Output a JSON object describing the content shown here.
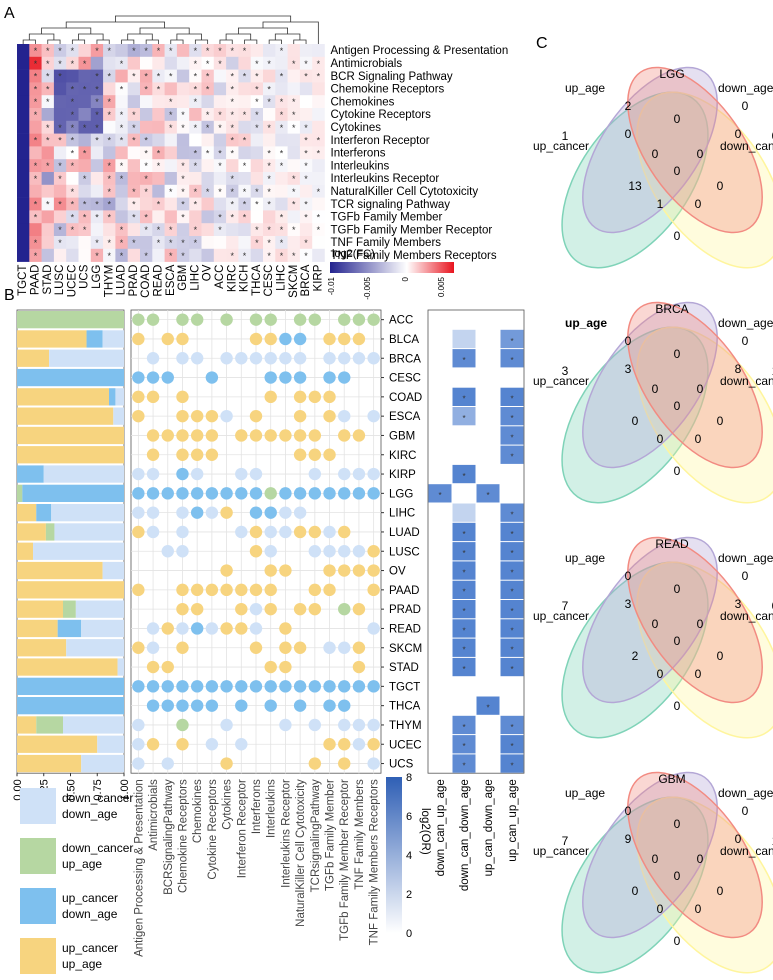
{
  "panel_labels": {
    "a": "A",
    "b": "B",
    "c": "C"
  },
  "heatmap": {
    "rows": [
      "Antigen Processing & Presentation",
      "Antimicrobials",
      "BCR Signaling Pathway",
      "Chemokine Receptors",
      "Chemokines",
      "Cytokine Receptors",
      "Cytokines",
      "Interferon Receptor",
      "Interferons",
      "Interleukins",
      "Interleukins Receptor",
      "NaturalKiller Cell Cytotoxicity",
      "TCR signaling Pathway",
      "TGFb Family Member",
      "TGFb Family Member Receptor",
      "TNF Family Members",
      "TNF Family Members Receptors"
    ],
    "cols": [
      "TGCT",
      "PAAD",
      "STAD",
      "LUSC",
      "UCEC",
      "UCS",
      "LGG",
      "THYM",
      "LUAD",
      "PRAD",
      "COAD",
      "READ",
      "ESCA",
      "GBM",
      "LIHC",
      "OV",
      "ACC",
      "KIRC",
      "KICH",
      "THCA",
      "CESC",
      "LIHC",
      "SKCM",
      "BRCA",
      "KIRP"
    ],
    "colorbar_title": "log2(FC)",
    "colorbar_ticks": [
      "-0.01",
      "-0.005",
      "0",
      "0.005"
    ],
    "colors": {
      "low": "#23238f",
      "mid": "#ffffff",
      "high": "#e8141e"
    }
  },
  "panelB": {
    "cancers": [
      "ACC",
      "BLCA",
      "BRCA",
      "CESC",
      "COAD",
      "ESCA",
      "GBM",
      "KIRC",
      "KIRP",
      "LGG",
      "LIHC",
      "LUAD",
      "LUSC",
      "OV",
      "PAAD",
      "PRAD",
      "READ",
      "SKCM",
      "STAD",
      "TGCT",
      "THCA",
      "THYM",
      "UCEC",
      "UCS"
    ],
    "pathways": [
      "Antigen Processing & Presentation",
      "Antimicrobials",
      "BCRSignalingPathway",
      "Chemokine Receptors",
      "Chemokines",
      "Cytokine Receptors",
      "Cytokines",
      "Interferon Receptor",
      "Interferons",
      "Interleukins",
      "Interleukins Receptor",
      "NaturalKiller Cell Cytotoxicity",
      "TCRsignalingPathway",
      "TGFb Family Member",
      "TGFb Family Member Receptor",
      "TNF Family Members",
      "TNF Family Members Receptors"
    ],
    "bar_axis_ticks": [
      "0.00",
      "0.25",
      "0.50",
      "0.75",
      "1.00"
    ],
    "legend": [
      {
        "label_1": "down_cancer",
        "label_2": "down_age",
        "color": "#cfe1f7"
      },
      {
        "label_1": "down_cancer",
        "label_2": "up_age",
        "color": "#b6d7a2"
      },
      {
        "label_1": "up_cancer",
        "label_2": "down_age",
        "color": "#7ec0ee"
      },
      {
        "label_1": "up_cancer",
        "label_2": "up_age",
        "color": "#f7d47f"
      }
    ],
    "or_title": "log2(OR)",
    "or_ticks": [
      "0",
      "2",
      "4",
      "6",
      "8"
    ],
    "or_cols": [
      "down_can_up_age",
      "down_can_down_age",
      "up_can_down_age",
      "up_can_up_age"
    ]
  },
  "venn": {
    "sets": [
      "up_age",
      "down_age",
      "up_cancer",
      "down_cancer"
    ],
    "colors": {
      "up_age": "#b4a7d6",
      "down_age": "#f28b82",
      "up_cancer": "#7fd3b8",
      "down_cancer": "#fff59d"
    },
    "diagrams": [
      {
        "title": "LGG",
        "counts": [
          "2",
          "0",
          "1",
          "0",
          "0",
          "0",
          "0",
          "0",
          "0",
          "13",
          "0",
          "0",
          "1",
          "0",
          "0"
        ]
      },
      {
        "title": "BRCA",
        "counts": [
          "0",
          "0",
          "3",
          "1",
          "3",
          "0",
          "8",
          "0",
          "0",
          "0",
          "0",
          "0",
          "0",
          "0",
          "0"
        ]
      },
      {
        "title": "READ",
        "counts": [
          "0",
          "0",
          "7",
          "0",
          "3",
          "0",
          "3",
          "0",
          "0",
          "2",
          "0",
          "0",
          "0",
          "0",
          "0"
        ]
      },
      {
        "title": "GBM",
        "counts": [
          "0",
          "0",
          "7",
          "1",
          "9",
          "0",
          "0",
          "0",
          "0",
          "0",
          "0",
          "0",
          "0",
          "0",
          "0"
        ]
      }
    ]
  }
}
